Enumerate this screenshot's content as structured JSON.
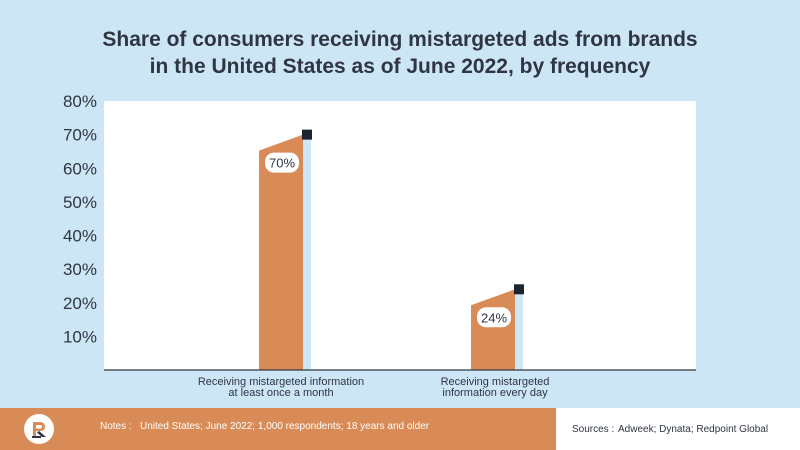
{
  "chart_data": {
    "type": "bar",
    "title_line1": "Share of consumers receiving mistargeted ads from brands",
    "title_line2": "in the United States as of June 2022, by frequency",
    "categories": [
      [
        "Receiving mistargeted information",
        "at least once a month"
      ],
      [
        "Receiving mistargeted",
        "information every day"
      ]
    ],
    "values": [
      70,
      24
    ],
    "value_labels": [
      "70%",
      "24%"
    ],
    "y_ticks": [
      "10%",
      "20%",
      "30%",
      "40%",
      "50%",
      "60%",
      "70%",
      "80%"
    ],
    "y_tick_values": [
      10,
      20,
      30,
      40,
      50,
      60,
      70,
      80
    ],
    "ylim": [
      0,
      80
    ],
    "xlabel": "",
    "ylabel": "",
    "colors": {
      "bar": "#d98b57",
      "bar_side": "#cde6f5",
      "marker": "#1c2331",
      "plot_bg": "#ffffff",
      "page_bg": "#cde6f5"
    }
  },
  "footer": {
    "notes_label": "Notes :",
    "notes_text": "United States; June 2022; 1,000 respondents; 18 years and older",
    "sources_label": "Sources :",
    "sources_text": "Adweek; Dynata; Redpoint Global"
  }
}
